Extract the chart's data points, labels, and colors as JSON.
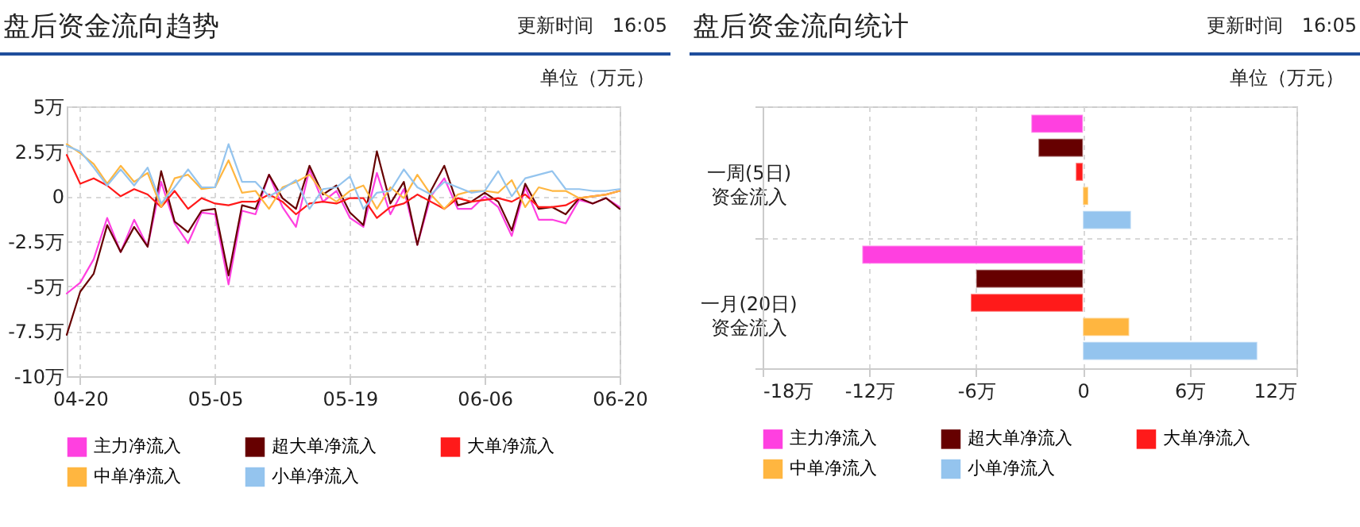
{
  "chart_data": [
    {
      "type": "line",
      "title": "盘后资金流向趋势",
      "annotations": [
        "更新时间　16:05",
        "单位（万元）"
      ],
      "categories": [
        null,
        "04-20",
        null,
        null,
        null,
        null,
        null,
        null,
        null,
        null,
        null,
        "05-05",
        null,
        null,
        null,
        null,
        null,
        null,
        null,
        null,
        null,
        "05-19",
        null,
        null,
        null,
        null,
        null,
        null,
        null,
        null,
        null,
        "06-06",
        null,
        null,
        null,
        null,
        null,
        null,
        null,
        null,
        null,
        "06-20"
      ],
      "series": [
        {
          "name": "主力净流入",
          "color": "#ff40e0",
          "values": [
            -5.4,
            -4.8,
            -3.5,
            -1.2,
            -3.1,
            -1.3,
            -2.8,
            0.8,
            -1.5,
            -2.6,
            -0.9,
            -1.0,
            -4.9,
            -0.8,
            -1.0,
            1.2,
            -0.6,
            -1.7,
            1.5,
            -0.3,
            0.3,
            -1.2,
            -1.7,
            1.3,
            -1.0,
            0.4,
            -2.7,
            0,
            1.0,
            -0.7,
            -0.7,
            0,
            -0.6,
            -2.2,
            0.5,
            -1.3,
            -1.3,
            -1.5,
            -0.2,
            -0.4,
            -0.1,
            -0.6
          ]
        },
        {
          "name": "超大单净流入",
          "color": "#660000",
          "values": [
            -7.7,
            -5.3,
            -4.3,
            -1.6,
            -3.1,
            -1.7,
            -2.8,
            1.4,
            -1.4,
            -2.0,
            -0.8,
            -0.7,
            -4.4,
            -0.5,
            -0.7,
            1.2,
            -0.1,
            -0.7,
            1.7,
            0.1,
            0.6,
            -0.9,
            -1.6,
            2.5,
            -0.4,
            0.8,
            -2.7,
            0.3,
            1.7,
            -0.5,
            -0.3,
            0.2,
            -0.3,
            -1.9,
            0.7,
            -0.7,
            -0.6,
            -1.0,
            -0.1,
            -0.4,
            -0.1,
            -0.7
          ]
        },
        {
          "name": "大单净流入",
          "color": "#ff1a1a",
          "values": [
            2.3,
            0.7,
            1.0,
            0.6,
            0,
            0.4,
            0.1,
            -0.6,
            0.3,
            -0.7,
            -0.1,
            -0.4,
            -0.5,
            -0.3,
            -0.3,
            0.1,
            -0.3,
            -1.0,
            -0.4,
            -0.3,
            -0.4,
            -0.1,
            -0.1,
            -1.2,
            -0.6,
            -0.4,
            0.1,
            -0.3,
            -0.7,
            -0.1,
            -0.3,
            -0.2,
            -0.1,
            -0.3,
            0.1,
            -0.6,
            -0.6,
            -0.5,
            -0.1,
            0,
            0.1,
            0.3
          ]
        },
        {
          "name": "中单净流入",
          "color": "#ffb640",
          "values": [
            2.9,
            2.4,
            1.8,
            0.7,
            1.7,
            0.8,
            1.3,
            -0.6,
            1.0,
            1.2,
            0.4,
            0.5,
            2.0,
            0.2,
            0.3,
            -0.7,
            0.5,
            0.8,
            1.2,
            0.2,
            -0.3,
            0.3,
            0.6,
            -0.7,
            0.5,
            -0.1,
            1.2,
            0.1,
            -0.7,
            0.1,
            0.3,
            0.3,
            0.2,
            0.9,
            -0.6,
            0.5,
            0.3,
            0.3,
            -0.1,
            0,
            0.1,
            0.3
          ]
        },
        {
          "name": "小单净流入",
          "color": "#94c4ee",
          "values": [
            2.8,
            2.5,
            1.6,
            0.6,
            1.5,
            0.6,
            1.6,
            -0.4,
            0.5,
            1.5,
            0.5,
            0.5,
            2.9,
            0.8,
            0.8,
            0,
            0.4,
            0.9,
            -0.7,
            0.4,
            0.5,
            1.1,
            -0.7,
            0.2,
            0.3,
            1.5,
            0.5,
            0.1,
            0.8,
            0.5,
            0.2,
            0.3,
            1.4,
            0,
            1.0,
            1.2,
            1.4,
            0.4,
            0.4,
            0.3,
            0.3,
            0.4
          ]
        }
      ],
      "ylim": [
        -10,
        5
      ],
      "yticks": [
        {
          "value": 5,
          "label": "5万"
        },
        {
          "value": 2.5,
          "label": "2.5万"
        },
        0,
        {
          "value": -2.5,
          "label": "-2.5万"
        },
        {
          "value": -5,
          "label": "-5万"
        },
        {
          "value": -7.5,
          "label": "-7.5万"
        },
        {
          "value": -10,
          "label": "-10万"
        }
      ],
      "grid": true,
      "legend": "bottom"
    },
    {
      "type": "bar",
      "orientation": "horizontal",
      "title": "盘后资金流向统计",
      "annotations": [
        "更新时间　16:05",
        "单位（万元）"
      ],
      "categories": [
        "一周(5日)\n资金流入",
        "一月(20日)\n资金流入"
      ],
      "series": [
        {
          "name": "主力净流入",
          "color": "#ff40e0",
          "values": [
            -2.9,
            -12.4
          ]
        },
        {
          "name": "超大单净流入",
          "color": "#660000",
          "values": [
            -2.5,
            -6.0
          ]
        },
        {
          "name": "大单净流入",
          "color": "#ff1a1a",
          "values": [
            -0.4,
            -6.3
          ]
        },
        {
          "name": "中单净流入",
          "color": "#ffb640",
          "values": [
            0.3,
            2.6
          ]
        },
        {
          "name": "小单净流入",
          "color": "#94c4ee",
          "values": [
            2.7,
            9.8
          ]
        }
      ],
      "xlim": [
        -18,
        12
      ],
      "xticks": [
        {
          "value": -18,
          "label": "-18万"
        },
        {
          "value": -12,
          "label": "-12万"
        },
        {
          "value": -6,
          "label": "-6万"
        },
        0,
        {
          "value": 6,
          "label": "6万"
        },
        {
          "value": 12,
          "label": "12万"
        }
      ],
      "grid": true,
      "legend": "bottom"
    }
  ]
}
